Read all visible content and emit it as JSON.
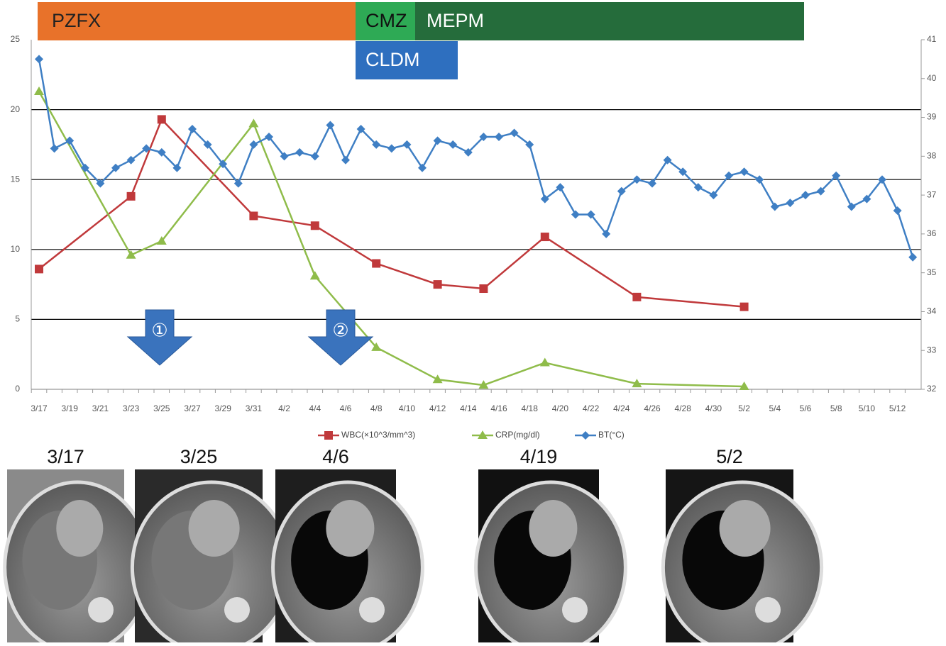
{
  "chart_data": {
    "type": "line",
    "treatments": [
      {
        "label": "PZFX",
        "color": "#e8722a"
      },
      {
        "label": "CMZ",
        "color": "#2eaa55"
      },
      {
        "label": "MEPM",
        "color": "#256c3b"
      },
      {
        "label": "CLDM",
        "color": "#2e6fbf"
      }
    ],
    "annotations": [
      "①",
      "②"
    ],
    "categories": [
      "3/17",
      null,
      "3/19",
      null,
      "3/21",
      null,
      "3/23",
      null,
      "3/25",
      null,
      "3/27",
      null,
      "3/29",
      null,
      "3/31",
      null,
      "4/2",
      null,
      "4/4",
      null,
      "4/6",
      null,
      "4/8",
      null,
      "4/10",
      null,
      "4/12",
      null,
      "4/14",
      null,
      "4/16",
      null,
      "4/18",
      null,
      "4/20",
      null,
      "4/22",
      null,
      "4/24",
      null,
      "4/26",
      null,
      "4/28",
      null,
      "4/30",
      null,
      "5/2",
      null,
      "5/4",
      null,
      "5/6",
      null,
      "5/8",
      null,
      "5/10",
      null,
      "5/12",
      null
    ],
    "series": [
      {
        "name": "WBC(×10^3/mm^3)",
        "color": "#c0393b",
        "marker": "square",
        "x": [
          "3/17",
          "3/23",
          "3/25",
          "3/31",
          "4/4",
          "4/8",
          "4/12",
          "4/15",
          "4/19",
          "4/25",
          "5/2"
        ],
        "values": [
          8.6,
          13.8,
          19.3,
          12.4,
          11.7,
          9.0,
          7.5,
          7.2,
          10.9,
          6.6,
          5.9
        ]
      },
      {
        "name": "CRP(mg/dl)",
        "color": "#8fbc4a",
        "marker": "triangle",
        "x": [
          "3/17",
          "3/23",
          "3/25",
          "3/31",
          "4/4",
          "4/8",
          "4/12",
          "4/15",
          "4/19",
          "4/25",
          "5/2"
        ],
        "values": [
          21.3,
          9.6,
          10.6,
          19.0,
          8.1,
          3.0,
          0.7,
          0.3,
          1.9,
          0.4,
          0.2
        ]
      },
      {
        "name": "BT(°C)",
        "color": "#3f7fc4",
        "marker": "diamond",
        "axis": "y2",
        "values": [
          40.5,
          38.2,
          38.4,
          37.7,
          37.3,
          37.7,
          37.9,
          38.2,
          38.1,
          37.7,
          38.7,
          38.3,
          37.8,
          37.3,
          38.3,
          38.5,
          38.0,
          38.1,
          38.0,
          38.8,
          37.9,
          38.7,
          38.3,
          38.2,
          38.3,
          37.7,
          38.4,
          38.3,
          38.1,
          38.5,
          38.5,
          38.6,
          38.3,
          36.9,
          37.2,
          36.5,
          36.5,
          36.0,
          37.1,
          37.4,
          37.3,
          37.9,
          37.6,
          37.2,
          37.0,
          37.5,
          37.6,
          37.4,
          36.7,
          36.8,
          37.0,
          37.1,
          37.5,
          36.7,
          36.9,
          37.4,
          36.6,
          35.4
        ]
      }
    ],
    "ylim": [
      0,
      25
    ],
    "yticks": [
      0,
      5,
      10,
      15,
      20,
      25
    ],
    "y2lim": [
      32,
      41
    ],
    "y2ticks": [
      32,
      33,
      34,
      35,
      36,
      37,
      38,
      39,
      40,
      41
    ],
    "grid": true,
    "legend": "bottom"
  },
  "ct_images": [
    "3/17",
    "3/25",
    "4/6",
    "4/19",
    "5/2"
  ]
}
